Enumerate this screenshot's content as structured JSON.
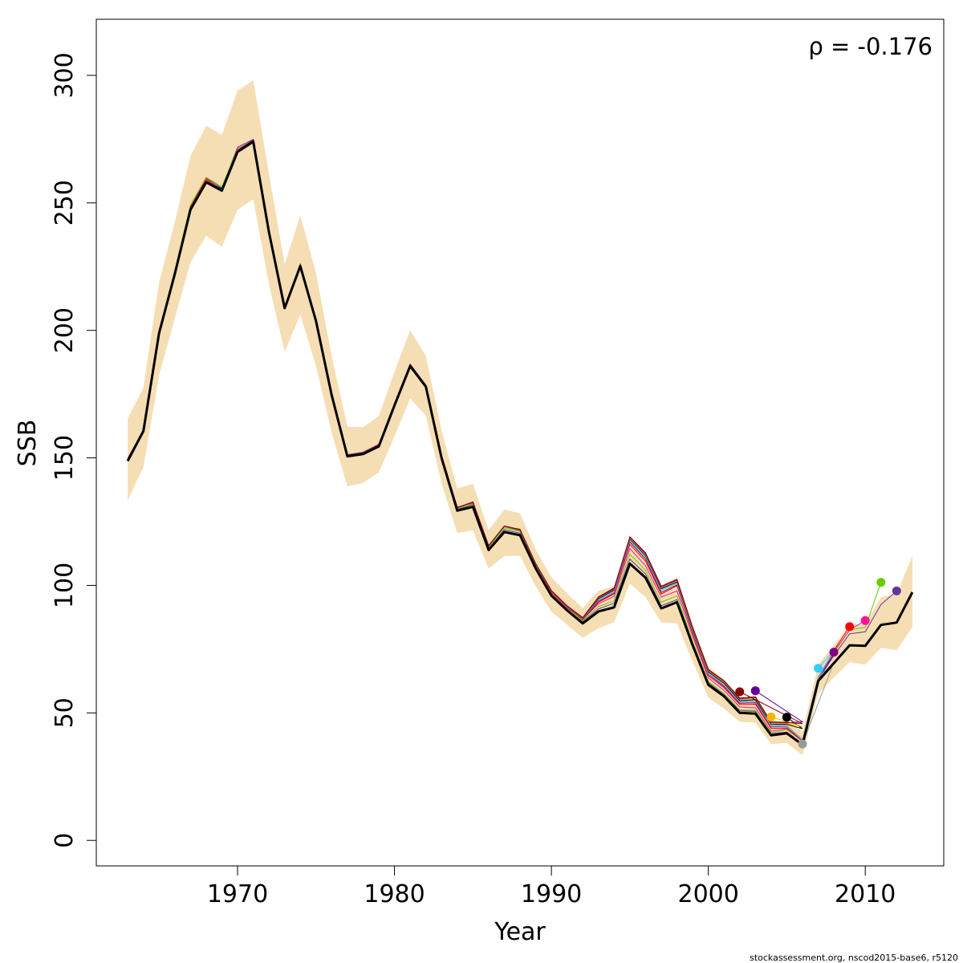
{
  "chart_data": {
    "type": "line",
    "xlabel": "Year",
    "ylabel": "SSB",
    "xlim": [
      1961,
      2015
    ],
    "ylim": [
      -10,
      322
    ],
    "xticks": [
      1970,
      1980,
      1990,
      2000,
      2010
    ],
    "yticks": [
      0,
      50,
      100,
      150,
      200,
      250,
      300
    ],
    "annotation": "ρ = -0.176",
    "footer": "stockassessment.org, nscod2015-base6, r5120",
    "band_color": "#F5DEB3",
    "grid": false,
    "main_series": {
      "color": "#000000",
      "points": [
        [
          1963,
          148.8
        ],
        [
          1964,
          160.5
        ],
        [
          1965,
          198.9
        ],
        [
          1966,
          222.1
        ],
        [
          1967,
          247.3
        ],
        [
          1968,
          258.1
        ],
        [
          1969,
          254.8
        ],
        [
          1970,
          270.0
        ],
        [
          1971,
          274.0
        ],
        [
          1972,
          238.6
        ],
        [
          1973,
          208.7
        ],
        [
          1974,
          225.2
        ],
        [
          1975,
          203.6
        ],
        [
          1976,
          174.6
        ],
        [
          1977,
          150.6
        ],
        [
          1978,
          151.5
        ],
        [
          1979,
          154.5
        ],
        [
          1980,
          170.6
        ],
        [
          1981,
          186.0
        ],
        [
          1982,
          177.9
        ],
        [
          1983,
          150.0
        ],
        [
          1984,
          129.3
        ],
        [
          1985,
          130.8
        ],
        [
          1986,
          113.9
        ],
        [
          1987,
          120.9
        ],
        [
          1988,
          119.7
        ],
        [
          1989,
          106.6
        ],
        [
          1990,
          96.0
        ],
        [
          1991,
          90.2
        ],
        [
          1992,
          85.1
        ],
        [
          1993,
          89.8
        ],
        [
          1994,
          91.4
        ],
        [
          1995,
          108.5
        ],
        [
          1996,
          103.0
        ],
        [
          1997,
          91.0
        ],
        [
          1998,
          93.4
        ],
        [
          1999,
          76.5
        ],
        [
          2000,
          61.0
        ],
        [
          2001,
          56.5
        ],
        [
          2002,
          50.0
        ],
        [
          2003,
          49.7
        ],
        [
          2004,
          41.2
        ],
        [
          2005,
          42.0
        ],
        [
          2006,
          37.5
        ],
        [
          2007,
          62.5
        ],
        [
          2008,
          69.5
        ],
        [
          2009,
          76.5
        ],
        [
          2010,
          76.3
        ],
        [
          2011,
          84.5
        ],
        [
          2012,
          85.4
        ],
        [
          2013,
          97.3
        ]
      ]
    },
    "band_upper": [
      [
        1963,
        165.5
      ],
      [
        1964,
        177.5
      ],
      [
        1965,
        218.8
      ],
      [
        1966,
        242.4
      ],
      [
        1967,
        268.3
      ],
      [
        1968,
        280.2
      ],
      [
        1969,
        276.7
      ],
      [
        1970,
        294.0
      ],
      [
        1971,
        298.0
      ],
      [
        1972,
        261.5
      ],
      [
        1973,
        225.9
      ],
      [
        1974,
        245.0
      ],
      [
        1975,
        222.5
      ],
      [
        1976,
        189.9
      ],
      [
        1977,
        162.2
      ],
      [
        1978,
        162.0
      ],
      [
        1979,
        166.4
      ],
      [
        1980,
        183.8
      ],
      [
        1981,
        200.0
      ],
      [
        1982,
        190.0
      ],
      [
        1983,
        160.8
      ],
      [
        1984,
        138.0
      ],
      [
        1985,
        139.9
      ],
      [
        1986,
        121.5
      ],
      [
        1987,
        129.8
      ],
      [
        1988,
        128.2
      ],
      [
        1989,
        114.0
      ],
      [
        1990,
        103.2
      ],
      [
        1991,
        96.8
      ],
      [
        1992,
        91.1
      ],
      [
        1993,
        97.9
      ],
      [
        1994,
        99.7
      ],
      [
        1995,
        117.1
      ],
      [
        1996,
        111.9
      ],
      [
        1997,
        100.0
      ],
      [
        1998,
        102.9
      ],
      [
        1999,
        84.4
      ],
      [
        2000,
        68.2
      ],
      [
        2001,
        63.1
      ],
      [
        2002,
        56.4
      ],
      [
        2003,
        55.4
      ],
      [
        2004,
        46.1
      ],
      [
        2005,
        46.7
      ],
      [
        2006,
        42.6
      ],
      [
        2007,
        69.0
      ],
      [
        2008,
        76.6
      ],
      [
        2009,
        84.4
      ],
      [
        2010,
        85.0
      ],
      [
        2011,
        95.4
      ],
      [
        2012,
        96.6
      ],
      [
        2013,
        111.6
      ]
    ],
    "band_lower": [
      [
        1963,
        133.3
      ],
      [
        1964,
        146.4
      ],
      [
        1965,
        182.3
      ],
      [
        1966,
        204.7
      ],
      [
        1967,
        226.6
      ],
      [
        1968,
        237.1
      ],
      [
        1969,
        232.8
      ],
      [
        1970,
        247.3
      ],
      [
        1971,
        251.4
      ],
      [
        1972,
        218.1
      ],
      [
        1973,
        191.6
      ],
      [
        1974,
        206.2
      ],
      [
        1975,
        186.0
      ],
      [
        1976,
        159.9
      ],
      [
        1977,
        138.8
      ],
      [
        1978,
        140.2
      ],
      [
        1979,
        144.3
      ],
      [
        1980,
        158.5
      ],
      [
        1981,
        173.3
      ],
      [
        1982,
        166.5
      ],
      [
        1983,
        140.0
      ],
      [
        1984,
        120.5
      ],
      [
        1985,
        121.6
      ],
      [
        1986,
        106.6
      ],
      [
        1987,
        111.5
      ],
      [
        1988,
        111.6
      ],
      [
        1989,
        99.6
      ],
      [
        1990,
        89.7
      ],
      [
        1991,
        84.6
      ],
      [
        1992,
        79.4
      ],
      [
        1993,
        83.2
      ],
      [
        1994,
        85.5
      ],
      [
        1995,
        100.7
      ],
      [
        1996,
        95.4
      ],
      [
        1997,
        85.4
      ],
      [
        1998,
        85.1
      ],
      [
        1999,
        70.1
      ],
      [
        2000,
        56.0
      ],
      [
        2001,
        51.7
      ],
      [
        2002,
        46.5
      ],
      [
        2003,
        46.2
      ],
      [
        2004,
        37.8
      ],
      [
        2005,
        38.2
      ],
      [
        2006,
        33.4
      ],
      [
        2007,
        57.6
      ],
      [
        2008,
        63.9
      ],
      [
        2009,
        69.9
      ],
      [
        2010,
        68.9
      ],
      [
        2011,
        75.5
      ],
      [
        2012,
        74.6
      ],
      [
        2013,
        83.6
      ]
    ],
    "retro_series": [
      {
        "color": "#663399",
        "end": [
          2012,
          97.8
        ],
        "offsets": [
          0.3,
          0.2,
          0.4,
          0.6,
          1.0,
          1.6,
          1.0,
          1.8,
          0.9,
          0.8,
          0.6,
          0.9,
          1.0,
          1.2,
          0.6,
          0.8,
          0.8,
          0.8,
          0.7,
          0.7,
          0.7,
          0.5,
          0.8,
          0.4,
          0.9,
          0.8,
          0.8,
          0.4,
          0.3,
          0.6,
          1.0,
          1.6,
          1.8,
          1.5,
          1.0,
          1.0,
          1.0,
          0.8,
          0.6,
          0.8,
          0.9,
          0.6,
          0.5,
          0.4,
          0.5,
          3.0,
          4.5,
          5.5,
          8.0,
          12.4
        ]
      },
      {
        "color": "#66CC00",
        "end": [
          2011,
          101.2
        ],
        "offsets": [
          0.5,
          0.6,
          0.9,
          1.3,
          1.8,
          1.9,
          1.5,
          1.2,
          0.5,
          0.7,
          0.5,
          0.9,
          0.8,
          1.0,
          0.3,
          0.6,
          0.8,
          0.7,
          0.6,
          0.5,
          0.8,
          0.9,
          1.0,
          0.8,
          1.6,
          1.5,
          1.4,
          0.8,
          0.5,
          1.0,
          1.9,
          2.6,
          3.7,
          3.0,
          2.4,
          2.5,
          1.5,
          1.3,
          1.1,
          1.2,
          1.3,
          1.0,
          1.4,
          1.3,
          1.3,
          4.1,
          6.1,
          7.2,
          16.7
        ]
      },
      {
        "color": "#FF1493",
        "end": [
          2010,
          86.2
        ],
        "offsets": [
          0.7,
          0.3,
          0.7,
          0.7,
          0.7,
          1.4,
          0.1,
          1.0,
          0.5,
          0.6,
          0.2,
          0.4,
          0.6,
          0.6,
          0.3,
          0.4,
          0.8,
          0.6,
          0.7,
          0.7,
          0.8,
          1.5,
          1.3,
          1.2,
          2.3,
          2.0,
          1.6,
          1.0,
          0.9,
          1.6,
          3.0,
          4.3,
          5.9,
          4.7,
          4.4,
          4.4,
          3.5,
          2.7,
          2.3,
          2.3,
          2.3,
          1.6,
          1.8,
          1.4,
          1.4,
          4.5,
          6.0,
          9.9
        ]
      },
      {
        "color": "#FF0000",
        "end": [
          2009,
          83.8
        ],
        "offsets": [
          0.6,
          0.5,
          0.8,
          1.1,
          1.1,
          1.1,
          0.3,
          0.7,
          0.4,
          0.7,
          0.6,
          0.7,
          0.8,
          0.8,
          0.2,
          0.5,
          0.8,
          0.6,
          0.5,
          0.7,
          0.9,
          1.0,
          1.8,
          1.5,
          2.2,
          2.3,
          1.8,
          1.4,
          1.3,
          1.4,
          3.6,
          5.3,
          7.6,
          6.5,
          5.6,
          6.5,
          4.5,
          3.6,
          3.4,
          3.3,
          3.7,
          2.7,
          2.1,
          1.5,
          1.4,
          5.0,
          7.3
        ]
      },
      {
        "color": "#800080",
        "end": [
          2008,
          73.8
        ],
        "offsets": [
          0.9,
          0.5,
          0.9,
          0.5,
          0.5,
          0.5,
          0.8,
          0.4,
          0.8,
          0.4,
          0.7,
          0.4,
          0.6,
          0.6,
          0.4,
          0.7,
          0.5,
          0.6,
          0.7,
          0.5,
          0.9,
          1.1,
          1.9,
          1.7,
          2.1,
          1.8,
          1.6,
          1.6,
          1.4,
          1.7,
          4.0,
          5.6,
          8.5,
          7.3,
          6.2,
          6.8,
          5.0,
          4.2,
          3.9,
          3.8,
          4.3,
          3.3,
          2.6,
          1.7,
          1.3,
          3.5
        ]
      },
      {
        "color": "#33CCFF",
        "end": [
          2007,
          67.5
        ],
        "offsets": [
          0.6,
          0.7,
          0.7,
          0.5,
          0.4,
          0.3,
          0.6,
          0.6,
          0.4,
          0.7,
          0.5,
          0.6,
          0.8,
          0.6,
          0.6,
          0.6,
          0.6,
          0.7,
          0.5,
          0.7,
          0.9,
          1.2,
          1.9,
          1.6,
          2.1,
          1.8,
          1.6,
          1.6,
          1.4,
          1.8,
          4.5,
          6.0,
          9.0,
          8.0,
          7.0,
          7.3,
          5.4,
          4.4,
          4.5,
          4.2,
          4.8,
          3.6,
          2.7,
          1.8,
          1.2,
          5.0
        ]
      },
      {
        "color": "#999999",
        "end": [
          2006,
          37.8
        ],
        "offsets": [
          0.4,
          0.6,
          0.5,
          0.4,
          0.6,
          0.6,
          0.5,
          0.6,
          0.4,
          0.6,
          0.6,
          0.7,
          0.5,
          0.7,
          0.5,
          0.6,
          0.6,
          0.5,
          0.6,
          0.5,
          0.9,
          1.0,
          1.8,
          1.5,
          2.1,
          1.9,
          1.6,
          1.7,
          1.5,
          1.9,
          4.8,
          6.5,
          9.5,
          8.5,
          7.5,
          7.7,
          5.8,
          4.9,
          4.9,
          4.6,
          5.2,
          4.0,
          3.0,
          2.1,
          1.4,
          0.3
        ]
      },
      {
        "color": "#000000",
        "end": [
          2005,
          48.3
        ],
        "offsets": [
          0.5,
          0.5,
          0.4,
          0.5,
          0.5,
          0.4,
          0.6,
          0.5,
          0.6,
          0.5,
          0.7,
          0.5,
          0.6,
          0.5,
          0.6,
          0.5,
          0.6,
          0.6,
          0.5,
          0.6,
          0.9,
          1.1,
          1.7,
          1.5,
          2.2,
          1.9,
          1.6,
          1.7,
          1.5,
          2.0,
          5.0,
          6.8,
          9.7,
          8.8,
          7.8,
          8.0,
          6.1,
          5.1,
          5.2,
          4.8,
          5.5,
          4.4,
          3.5,
          6.3
        ]
      },
      {
        "color": "#FFB300",
        "end": [
          2004,
          48.4
        ],
        "offsets": [
          0.5,
          0.6,
          0.5,
          0.6,
          0.5,
          0.6,
          0.4,
          0.6,
          0.5,
          0.6,
          0.5,
          0.6,
          0.5,
          0.6,
          0.5,
          0.6,
          0.5,
          0.6,
          0.5,
          0.6,
          0.9,
          1.1,
          1.8,
          1.5,
          2.2,
          2.0,
          1.7,
          1.8,
          1.6,
          2.1,
          5.3,
          7.1,
          10.0,
          9.1,
          8.2,
          8.3,
          6.5,
          5.5,
          5.6,
          5.3,
          6.1,
          4.8,
          3.9,
          7.2
        ]
      },
      {
        "color": "#660099",
        "end": [
          2003,
          58.7
        ],
        "offsets": [
          0.6,
          0.5,
          0.6,
          0.5,
          0.6,
          0.5,
          0.5,
          0.5,
          0.6,
          0.5,
          0.6,
          0.5,
          0.6,
          0.5,
          0.6,
          0.5,
          0.6,
          0.5,
          0.6,
          0.5,
          1.0,
          1.2,
          1.9,
          1.6,
          2.3,
          2.1,
          1.8,
          1.9,
          1.7,
          2.2,
          5.5,
          7.3,
          10.3,
          9.4,
          8.4,
          8.6,
          6.8,
          5.8,
          5.9,
          5.5,
          6.4,
          5.1,
          4.1,
          9.0
        ]
      },
      {
        "color": "#8B0000",
        "end": [
          2002,
          58.3
        ],
        "offsets": [
          0.4,
          0.4,
          0.4,
          0.4,
          0.4,
          0.4,
          0.4,
          0.4,
          0.4,
          0.4,
          0.4,
          0.4,
          0.4,
          0.4,
          0.4,
          0.4,
          0.4,
          0.4,
          0.4,
          0.4,
          1.0,
          1.2,
          1.9,
          1.7,
          2.4,
          2.2,
          1.9,
          2.0,
          1.8,
          2.3,
          5.7,
          7.6,
          10.6,
          9.8,
          8.7,
          9.0,
          7.1,
          6.0,
          6.1,
          5.8,
          6.6,
          5.3,
          4.3,
          8.3
        ]
      }
    ]
  }
}
